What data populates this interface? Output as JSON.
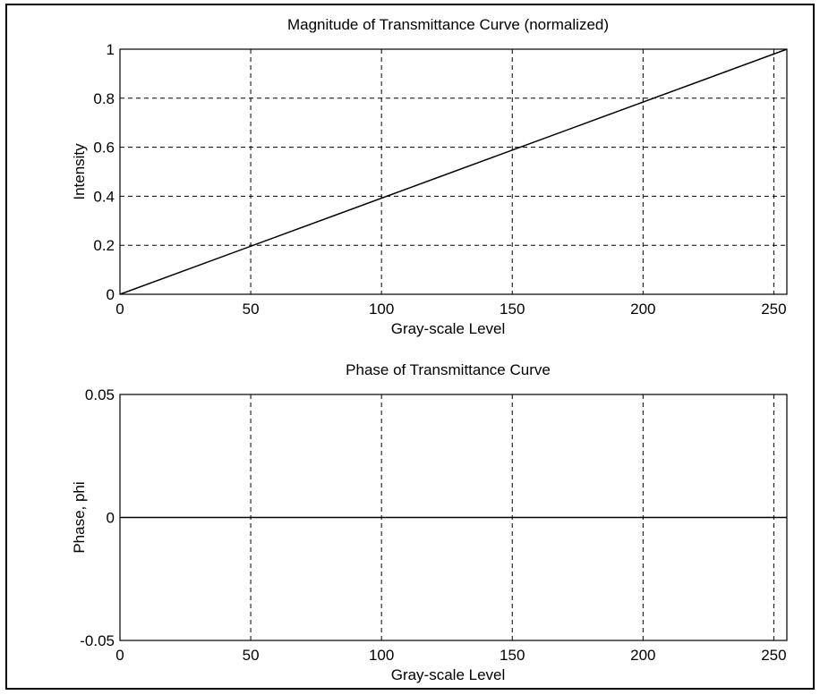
{
  "chart_data": [
    {
      "type": "line",
      "title": "Magnitude of Transmittance Curve (normalized)",
      "xlabel": "Gray-scale Level",
      "ylabel": "Intensity",
      "xlim": [
        0,
        255
      ],
      "ylim": [
        0,
        1
      ],
      "xticks": [
        0,
        50,
        100,
        150,
        200,
        250
      ],
      "yticks": [
        0,
        0.2,
        0.4,
        0.6,
        0.8,
        1
      ],
      "xtick_labels": [
        "0",
        "50",
        "100",
        "150",
        "200",
        "250"
      ],
      "ytick_labels": [
        "0",
        "0.2",
        "0.4",
        "0.6",
        "0.8",
        "1"
      ],
      "grid": true,
      "series": [
        {
          "x": [
            0,
            255
          ],
          "y": [
            0,
            1
          ]
        }
      ]
    },
    {
      "type": "line",
      "title": "Phase of Transmittance Curve",
      "xlabel": "Gray-scale Level",
      "ylabel": "Phase, phi",
      "xlim": [
        0,
        255
      ],
      "ylim": [
        -0.05,
        0.05
      ],
      "xticks": [
        0,
        50,
        100,
        150,
        200,
        250
      ],
      "yticks": [
        -0.05,
        0,
        0.05
      ],
      "xtick_labels": [
        "0",
        "50",
        "100",
        "150",
        "200",
        "250"
      ],
      "ytick_labels": [
        "-0.05",
        "0",
        "0.05"
      ],
      "grid": true,
      "grid_axis": "x",
      "series": [
        {
          "x": [
            0,
            255
          ],
          "y": [
            0,
            0
          ]
        }
      ]
    }
  ]
}
